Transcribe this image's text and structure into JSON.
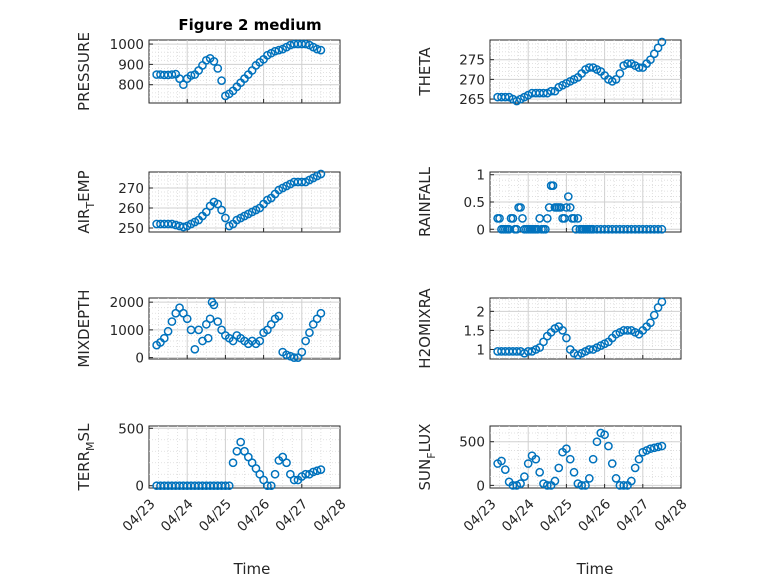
{
  "figure_title": "Figure 2 medium",
  "x_axis_label": "Time",
  "colors": {
    "series": "#0072BD",
    "axis": "#262626",
    "grid": "#d9d9d9"
  },
  "chart_data": [
    {
      "id": "pressure",
      "type": "scatter",
      "ylabel": "PRESSURE",
      "x_ticks": [
        "04/23",
        "04/24",
        "04/25",
        "04/26",
        "04/27",
        "04/28"
      ],
      "show_x_ticks": false,
      "xlim": [
        0,
        5
      ],
      "ylim": [
        710,
        1020
      ],
      "yticks": [
        800,
        900,
        1000
      ],
      "grid": true,
      "x": [
        0.2,
        0.3,
        0.4,
        0.5,
        0.6,
        0.7,
        0.8,
        0.9,
        1.0,
        1.1,
        1.2,
        1.3,
        1.4,
        1.5,
        1.6,
        1.7,
        1.8,
        1.9,
        2.0,
        2.1,
        2.2,
        2.3,
        2.4,
        2.5,
        2.6,
        2.7,
        2.8,
        2.9,
        3.0,
        3.1,
        3.2,
        3.3,
        3.4,
        3.5,
        3.6,
        3.7,
        3.8,
        3.9,
        4.0,
        4.1,
        4.2,
        4.3,
        4.4,
        4.5
      ],
      "y": [
        850,
        850,
        848,
        848,
        850,
        852,
        830,
        800,
        830,
        845,
        850,
        870,
        895,
        920,
        930,
        915,
        880,
        820,
        745,
        755,
        770,
        790,
        810,
        830,
        850,
        870,
        895,
        910,
        925,
        945,
        955,
        965,
        970,
        975,
        985,
        995,
        1000,
        1000,
        1000,
        1000,
        995,
        985,
        975,
        970
      ]
    },
    {
      "id": "theta",
      "type": "scatter",
      "ylabel": "THETA",
      "x_ticks": [
        "04/23",
        "04/24",
        "04/25",
        "04/26",
        "04/27",
        "04/28"
      ],
      "show_x_ticks": false,
      "xlim": [
        0,
        5
      ],
      "ylim": [
        264,
        280
      ],
      "yticks": [
        265,
        270,
        275
      ],
      "grid": true,
      "x": [
        0.2,
        0.3,
        0.4,
        0.5,
        0.6,
        0.7,
        0.8,
        0.9,
        1.0,
        1.1,
        1.2,
        1.3,
        1.4,
        1.5,
        1.6,
        1.7,
        1.8,
        1.9,
        2.0,
        2.1,
        2.2,
        2.3,
        2.4,
        2.5,
        2.6,
        2.7,
        2.8,
        2.9,
        3.0,
        3.1,
        3.2,
        3.3,
        3.4,
        3.5,
        3.6,
        3.7,
        3.8,
        3.9,
        4.0,
        4.1,
        4.2,
        4.3,
        4.4,
        4.5
      ],
      "y": [
        265.5,
        265.5,
        265.5,
        265.5,
        265,
        264.5,
        265,
        265.5,
        266,
        266.5,
        266.5,
        266.5,
        266.5,
        266.5,
        267,
        267,
        268,
        268.5,
        269,
        269.5,
        270,
        270.5,
        271.5,
        272.5,
        273,
        273,
        272.5,
        272,
        271,
        270,
        269.5,
        270,
        271.5,
        273.5,
        274,
        274,
        273.5,
        273,
        273,
        274,
        275,
        276.5,
        278,
        279.5
      ]
    },
    {
      "id": "air_temp",
      "type": "scatter",
      "ylabel": "AIR",
      "ylabel_sub": "T",
      "ylabel_rest": "EMP",
      "x_ticks": [
        "04/23",
        "04/24",
        "04/25",
        "04/26",
        "04/27",
        "04/28"
      ],
      "show_x_ticks": false,
      "xlim": [
        0,
        5
      ],
      "ylim": [
        248,
        278
      ],
      "yticks": [
        250,
        260,
        270
      ],
      "grid": true,
      "x": [
        0.2,
        0.3,
        0.4,
        0.5,
        0.6,
        0.7,
        0.8,
        0.9,
        1.0,
        1.1,
        1.2,
        1.3,
        1.4,
        1.5,
        1.6,
        1.7,
        1.8,
        1.9,
        2.0,
        2.1,
        2.2,
        2.3,
        2.4,
        2.5,
        2.6,
        2.7,
        2.8,
        2.9,
        3.0,
        3.1,
        3.2,
        3.3,
        3.4,
        3.5,
        3.6,
        3.7,
        3.8,
        3.9,
        4.0,
        4.1,
        4.2,
        4.3,
        4.4,
        4.5
      ],
      "y": [
        252,
        252,
        252,
        252,
        252,
        251.5,
        251,
        250.5,
        251,
        252,
        253,
        254,
        256,
        258,
        261,
        263,
        262,
        259,
        255,
        251,
        252,
        254,
        255,
        256,
        257,
        258,
        259,
        260,
        262,
        264,
        265,
        267,
        269,
        270,
        271,
        272,
        273,
        273,
        273,
        273,
        274,
        275,
        276,
        277
      ]
    },
    {
      "id": "rainfall",
      "type": "scatter",
      "ylabel": "RAINFALL",
      "x_ticks": [
        "04/23",
        "04/24",
        "04/25",
        "04/26",
        "04/27",
        "04/28"
      ],
      "show_x_ticks": false,
      "xlim": [
        0,
        5
      ],
      "ylim": [
        -0.05,
        1.05
      ],
      "yticks": [
        0,
        0.5,
        1
      ],
      "ytick_labels": [
        "0",
        "0.5",
        "1"
      ],
      "grid": true,
      "x": [
        0.2,
        0.25,
        0.3,
        0.35,
        0.4,
        0.45,
        0.5,
        0.55,
        0.6,
        0.65,
        0.7,
        0.75,
        0.8,
        0.85,
        0.9,
        0.95,
        1.0,
        1.05,
        1.1,
        1.15,
        1.2,
        1.25,
        1.3,
        1.35,
        1.4,
        1.45,
        1.5,
        1.55,
        1.6,
        1.65,
        1.7,
        1.75,
        1.8,
        1.85,
        1.9,
        1.95,
        2.0,
        2.05,
        2.1,
        2.15,
        2.2,
        2.25,
        2.3,
        2.35,
        2.4,
        2.45,
        2.5,
        2.55,
        2.6,
        2.65,
        2.7,
        2.8,
        2.9,
        3.0,
        3.1,
        3.2,
        3.3,
        3.4,
        3.5,
        3.6,
        3.7,
        3.8,
        3.9,
        4.0,
        4.1,
        4.2,
        4.3,
        4.4,
        4.5
      ],
      "y": [
        0.2,
        0.2,
        0,
        0,
        0,
        0,
        0,
        0.2,
        0.2,
        0,
        0,
        0.4,
        0.4,
        0.2,
        0,
        0,
        0,
        0,
        0,
        0,
        0,
        0,
        0.2,
        0,
        0,
        0,
        0.2,
        0.4,
        0.8,
        0.8,
        0.4,
        0.4,
        0.4,
        0.4,
        0.2,
        0.2,
        0.4,
        0.6,
        0.4,
        0.2,
        0.2,
        0,
        0.2,
        0,
        0,
        0,
        0,
        0,
        0,
        0,
        0,
        0,
        0,
        0,
        0,
        0,
        0,
        0,
        0,
        0,
        0,
        0,
        0,
        0,
        0,
        0,
        0,
        0,
        0
      ]
    },
    {
      "id": "mixdepth",
      "type": "scatter",
      "ylabel": "MIXDEPTH",
      "x_ticks": [
        "04/23",
        "04/24",
        "04/25",
        "04/26",
        "04/27",
        "04/28"
      ],
      "show_x_ticks": false,
      "xlim": [
        0,
        5
      ],
      "ylim": [
        -50,
        2150
      ],
      "yticks": [
        0,
        1000,
        2000
      ],
      "grid": true,
      "x": [
        0.2,
        0.3,
        0.4,
        0.5,
        0.6,
        0.7,
        0.8,
        0.9,
        1.0,
        1.1,
        1.2,
        1.3,
        1.4,
        1.5,
        1.55,
        1.6,
        1.65,
        1.7,
        1.8,
        1.9,
        2.0,
        2.1,
        2.2,
        2.3,
        2.4,
        2.5,
        2.6,
        2.7,
        2.8,
        2.9,
        3.0,
        3.1,
        3.2,
        3.3,
        3.4,
        3.5,
        3.6,
        3.7,
        3.8,
        3.9,
        4.0,
        4.1,
        4.2,
        4.3,
        4.4,
        4.5
      ],
      "y": [
        450,
        550,
        700,
        950,
        1300,
        1600,
        1800,
        1600,
        1400,
        1000,
        300,
        1000,
        600,
        1200,
        700,
        1400,
        2000,
        1900,
        1300,
        1000,
        800,
        700,
        600,
        800,
        700,
        600,
        500,
        600,
        500,
        600,
        900,
        1000,
        1200,
        1400,
        1500,
        200,
        100,
        50,
        0,
        0,
        200,
        600,
        900,
        1200,
        1400,
        1600
      ]
    },
    {
      "id": "h2omixra",
      "type": "scatter",
      "ylabel": "H2OMIXRA",
      "x_ticks": [
        "04/23",
        "04/24",
        "04/25",
        "04/26",
        "04/27",
        "04/28"
      ],
      "show_x_ticks": false,
      "xlim": [
        0,
        5
      ],
      "ylim": [
        0.75,
        2.35
      ],
      "yticks": [
        1,
        1.5,
        2
      ],
      "ytick_labels": [
        "1",
        "1.5",
        "2"
      ],
      "grid": true,
      "x": [
        0.2,
        0.3,
        0.4,
        0.5,
        0.6,
        0.7,
        0.8,
        0.9,
        1.0,
        1.1,
        1.2,
        1.3,
        1.4,
        1.5,
        1.6,
        1.7,
        1.8,
        1.9,
        2.0,
        2.1,
        2.2,
        2.3,
        2.4,
        2.5,
        2.6,
        2.7,
        2.8,
        2.9,
        3.0,
        3.1,
        3.2,
        3.3,
        3.4,
        3.5,
        3.6,
        3.7,
        3.8,
        3.9,
        4.0,
        4.1,
        4.2,
        4.3,
        4.4,
        4.5
      ],
      "y": [
        0.95,
        0.95,
        0.95,
        0.95,
        0.95,
        0.95,
        0.95,
        0.9,
        0.95,
        0.95,
        1.0,
        1.05,
        1.2,
        1.35,
        1.45,
        1.55,
        1.6,
        1.5,
        1.3,
        1.0,
        0.9,
        0.85,
        0.9,
        0.95,
        1.0,
        1.0,
        1.05,
        1.1,
        1.15,
        1.2,
        1.3,
        1.4,
        1.45,
        1.5,
        1.5,
        1.5,
        1.45,
        1.4,
        1.5,
        1.6,
        1.7,
        1.9,
        2.1,
        2.25
      ]
    },
    {
      "id": "terr_msl",
      "type": "scatter",
      "ylabel": "TERR",
      "ylabel_sub": "M",
      "ylabel_rest": "SL",
      "x_ticks": [
        "04/23",
        "04/24",
        "04/25",
        "04/26",
        "04/27",
        "04/28"
      ],
      "show_x_ticks": true,
      "xlim": [
        0,
        5
      ],
      "ylim": [
        -20,
        520
      ],
      "yticks": [
        0,
        500
      ],
      "grid": true,
      "x": [
        0.2,
        0.3,
        0.4,
        0.5,
        0.6,
        0.7,
        0.8,
        0.9,
        1.0,
        1.1,
        1.2,
        1.3,
        1.4,
        1.5,
        1.6,
        1.7,
        1.8,
        1.9,
        2.0,
        2.1,
        2.2,
        2.3,
        2.4,
        2.5,
        2.6,
        2.7,
        2.8,
        2.9,
        3.0,
        3.1,
        3.2,
        3.3,
        3.4,
        3.5,
        3.6,
        3.7,
        3.8,
        3.9,
        4.0,
        4.1,
        4.2,
        4.3,
        4.4,
        4.5
      ],
      "y": [
        0,
        0,
        0,
        0,
        0,
        0,
        0,
        0,
        0,
        0,
        0,
        0,
        0,
        0,
        0,
        0,
        0,
        0,
        0,
        0,
        200,
        300,
        380,
        300,
        250,
        200,
        150,
        100,
        50,
        0,
        0,
        100,
        220,
        250,
        200,
        100,
        50,
        50,
        80,
        100,
        100,
        120,
        130,
        140
      ]
    },
    {
      "id": "sun_flux",
      "type": "scatter",
      "ylabel": "SUN",
      "ylabel_sub": "F",
      "ylabel_rest": "LUX",
      "x_ticks": [
        "04/23",
        "04/24",
        "04/25",
        "04/26",
        "04/27",
        "04/28"
      ],
      "show_x_ticks": true,
      "xlim": [
        0,
        5
      ],
      "ylim": [
        -30,
        680
      ],
      "yticks": [
        0,
        500
      ],
      "grid": true,
      "x": [
        0.2,
        0.3,
        0.4,
        0.5,
        0.6,
        0.7,
        0.8,
        0.9,
        1.0,
        1.1,
        1.2,
        1.3,
        1.4,
        1.5,
        1.6,
        1.7,
        1.8,
        1.9,
        2.0,
        2.1,
        2.2,
        2.3,
        2.4,
        2.5,
        2.6,
        2.7,
        2.8,
        2.9,
        3.0,
        3.1,
        3.2,
        3.3,
        3.4,
        3.5,
        3.6,
        3.7,
        3.8,
        3.9,
        4.0,
        4.1,
        4.2,
        4.3,
        4.4,
        4.5
      ],
      "y": [
        250,
        280,
        180,
        40,
        0,
        0,
        20,
        100,
        250,
        340,
        300,
        150,
        20,
        0,
        0,
        50,
        200,
        380,
        420,
        300,
        150,
        20,
        0,
        0,
        80,
        300,
        500,
        600,
        580,
        450,
        250,
        80,
        0,
        0,
        0,
        50,
        200,
        300,
        380,
        400,
        420,
        430,
        440,
        450
      ]
    }
  ]
}
